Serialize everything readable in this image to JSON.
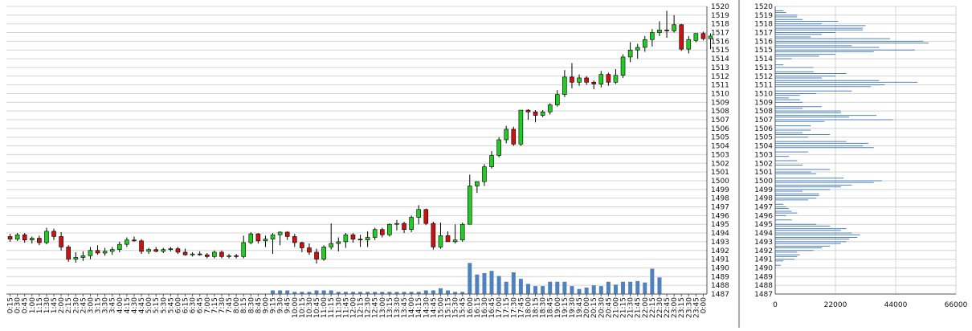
{
  "chart_data": [
    {
      "type": "candlestick",
      "title": "",
      "xlabel": "",
      "ylabel": "",
      "ylim": [
        1487,
        1520
      ],
      "y_ticks": [
        1487,
        1488,
        1489,
        1490,
        1491,
        1492,
        1493,
        1494,
        1495,
        1496,
        1497,
        1498,
        1499,
        1500,
        1501,
        1502,
        1503,
        1504,
        1505,
        1506,
        1507,
        1508,
        1509,
        1510,
        1511,
        1512,
        1513,
        1514,
        1515,
        1516,
        1517,
        1518,
        1519,
        1520
      ],
      "x_tick_labels": [
        "0:15",
        "0:30",
        "0:45",
        "1:00",
        "1:15",
        "1:30",
        "1:45",
        "2:00",
        "2:15",
        "2:30",
        "2:45",
        "3:00",
        "3:15",
        "3:30",
        "3:45",
        "4:00",
        "4:15",
        "4:30",
        "4:45",
        "5:00",
        "5:15",
        "5:30",
        "5:45",
        "6:00",
        "6:15",
        "6:30",
        "6:45",
        "7:00",
        "7:15",
        "7:30",
        "7:45",
        "8:00",
        "8:15",
        "8:30",
        "8:45",
        "9:00",
        "9:15",
        "9:30",
        "9:45",
        "10:00",
        "10:15",
        "10:30",
        "10:45",
        "11:00",
        "11:15",
        "11:30",
        "11:45",
        "12:00",
        "12:15",
        "12:30",
        "12:45",
        "13:00",
        "13:15",
        "13:30",
        "13:45",
        "14:00",
        "14:15",
        "14:30",
        "14:45",
        "15:00",
        "15:15",
        "15:30",
        "15:45",
        "16:00",
        "16:15",
        "16:30",
        "16:45",
        "17:00",
        "17:15",
        "17:30",
        "17:45",
        "18:00",
        "18:15",
        "18:30",
        "18:45",
        "19:00",
        "19:15",
        "19:30",
        "19:45",
        "20:00",
        "20:15",
        "20:30",
        "20:45",
        "21:00",
        "21:15",
        "21:30",
        "21:45",
        "22:00",
        "22:15",
        "22:30",
        "22:45",
        "23:00",
        "23:15",
        "23:30",
        "23:45",
        "0:00"
      ],
      "candles": [
        [
          1493.6,
          1493.9,
          1493.0,
          1493.3
        ],
        [
          1493.3,
          1494.0,
          1493.1,
          1493.8
        ],
        [
          1493.8,
          1494.0,
          1492.9,
          1493.2
        ],
        [
          1493.2,
          1493.6,
          1492.8,
          1493.4
        ],
        [
          1493.4,
          1493.7,
          1492.6,
          1492.9
        ],
        [
          1492.9,
          1494.6,
          1492.7,
          1494.2
        ],
        [
          1494.2,
          1494.5,
          1493.2,
          1493.6
        ],
        [
          1493.6,
          1494.1,
          1492.0,
          1492.4
        ],
        [
          1492.4,
          1492.6,
          1490.7,
          1491.0
        ],
        [
          1491.0,
          1491.8,
          1490.6,
          1491.2
        ],
        [
          1491.2,
          1491.9,
          1490.8,
          1491.4
        ],
        [
          1491.4,
          1492.4,
          1491.0,
          1492.0
        ],
        [
          1492.0,
          1492.6,
          1491.5,
          1491.7
        ],
        [
          1491.7,
          1492.3,
          1491.4,
          1491.9
        ],
        [
          1491.9,
          1492.4,
          1491.5,
          1492.1
        ],
        [
          1492.1,
          1493.0,
          1491.8,
          1492.7
        ],
        [
          1492.7,
          1493.5,
          1492.4,
          1493.2
        ],
        [
          1493.2,
          1493.6,
          1493.0,
          1493.1
        ],
        [
          1493.1,
          1493.3,
          1491.6,
          1491.9
        ],
        [
          1491.9,
          1492.3,
          1491.6,
          1492.1
        ],
        [
          1492.1,
          1492.4,
          1491.8,
          1491.9
        ],
        [
          1491.9,
          1492.3,
          1491.7,
          1492.1
        ],
        [
          1492.1,
          1492.4,
          1491.9,
          1492.2
        ],
        [
          1492.2,
          1492.4,
          1491.6,
          1491.8
        ],
        [
          1491.8,
          1492.2,
          1491.4,
          1491.5
        ],
        [
          1491.5,
          1491.8,
          1491.3,
          1491.6
        ],
        [
          1491.6,
          1491.9,
          1491.4,
          1491.5
        ],
        [
          1491.5,
          1491.7,
          1491.1,
          1491.3
        ],
        [
          1491.3,
          1492.0,
          1491.1,
          1491.8
        ],
        [
          1491.8,
          1492.0,
          1491.1,
          1491.3
        ],
        [
          1491.3,
          1491.6,
          1491.1,
          1491.4
        ],
        [
          1491.4,
          1491.6,
          1491.1,
          1491.3
        ],
        [
          1491.3,
          1493.7,
          1491.1,
          1492.9
        ],
        [
          1492.9,
          1494.1,
          1492.7,
          1493.9
        ],
        [
          1493.9,
          1494.0,
          1492.8,
          1493.1
        ],
        [
          1493.1,
          1493.7,
          1492.4,
          1493.3
        ],
        [
          1493.3,
          1494.0,
          1491.6,
          1493.8
        ],
        [
          1493.8,
          1494.2,
          1492.6,
          1494.1
        ],
        [
          1494.1,
          1494.2,
          1493.2,
          1493.6
        ],
        [
          1493.6,
          1493.9,
          1492.4,
          1492.9
        ],
        [
          1492.9,
          1493.0,
          1491.8,
          1492.3
        ],
        [
          1492.3,
          1492.8,
          1491.5,
          1491.8
        ],
        [
          1491.8,
          1492.2,
          1490.5,
          1491.0
        ],
        [
          1491.0,
          1492.6,
          1490.8,
          1492.4
        ],
        [
          1492.4,
          1495.1,
          1492.1,
          1492.8
        ],
        [
          1492.8,
          1493.5,
          1491.9,
          1493.0
        ],
        [
          1493.0,
          1494.0,
          1492.3,
          1493.8
        ],
        [
          1493.8,
          1494.0,
          1492.9,
          1493.3
        ],
        [
          1493.3,
          1493.8,
          1492.4,
          1493.2
        ],
        [
          1493.2,
          1494.2,
          1492.4,
          1493.5
        ],
        [
          1493.5,
          1494.6,
          1493.2,
          1494.4
        ],
        [
          1494.4,
          1494.6,
          1493.5,
          1493.8
        ],
        [
          1493.8,
          1495.1,
          1493.6,
          1495.0
        ],
        [
          1495.0,
          1495.5,
          1494.3,
          1495.1
        ],
        [
          1495.1,
          1495.3,
          1494.0,
          1494.4
        ],
        [
          1494.4,
          1496.0,
          1494.1,
          1495.8
        ],
        [
          1495.8,
          1497.2,
          1495.0,
          1496.7
        ],
        [
          1496.7,
          1496.8,
          1494.9,
          1495.1
        ],
        [
          1495.1,
          1495.3,
          1492.1,
          1492.4
        ],
        [
          1492.4,
          1495.2,
          1492.2,
          1493.7
        ],
        [
          1493.7,
          1494.2,
          1493.1,
          1493.0
        ],
        [
          1493.0,
          1495.0,
          1492.8,
          1493.2
        ],
        [
          1493.2,
          1495.2,
          1493.0,
          1495.0
        ],
        [
          1495.0,
          1500.7,
          1495.0,
          1499.4
        ],
        [
          1499.4,
          1499.9,
          1498.6,
          1499.9
        ],
        [
          1499.9,
          1501.9,
          1499.4,
          1501.6
        ],
        [
          1501.6,
          1503.4,
          1501.4,
          1502.9
        ],
        [
          1502.9,
          1505.0,
          1502.7,
          1504.7
        ],
        [
          1504.7,
          1506.3,
          1504.3,
          1505.9
        ],
        [
          1505.9,
          1506.2,
          1504.0,
          1504.2
        ],
        [
          1504.2,
          1508.0,
          1504.0,
          1508.1
        ],
        [
          1508.1,
          1508.2,
          1507.0,
          1507.9
        ],
        [
          1507.9,
          1508.1,
          1506.7,
          1507.5
        ],
        [
          1507.5,
          1508.1,
          1507.3,
          1507.9
        ],
        [
          1507.9,
          1508.9,
          1507.6,
          1508.7
        ],
        [
          1508.7,
          1510.4,
          1508.5,
          1509.9
        ],
        [
          1509.9,
          1512.7,
          1509.6,
          1511.9
        ],
        [
          1511.9,
          1513.5,
          1510.6,
          1511.3
        ],
        [
          1511.3,
          1512.2,
          1510.9,
          1511.8
        ],
        [
          1511.8,
          1512.0,
          1511.0,
          1511.3
        ],
        [
          1511.3,
          1511.5,
          1510.5,
          1511.1
        ],
        [
          1511.1,
          1512.6,
          1510.7,
          1512.2
        ],
        [
          1512.2,
          1512.4,
          1510.9,
          1511.3
        ],
        [
          1511.3,
          1512.8,
          1511.1,
          1512.1
        ],
        [
          1512.1,
          1514.5,
          1511.8,
          1514.2
        ],
        [
          1514.2,
          1515.9,
          1513.6,
          1515.0
        ],
        [
          1515.0,
          1515.7,
          1514.0,
          1515.3
        ],
        [
          1515.3,
          1516.6,
          1514.8,
          1516.2
        ],
        [
          1516.2,
          1517.4,
          1515.4,
          1517.0
        ],
        [
          1517.0,
          1518.3,
          1516.6,
          1517.3
        ],
        [
          1517.3,
          1519.5,
          1516.4,
          1517.2
        ],
        [
          1517.2,
          1519.0,
          1517.0,
          1517.9
        ],
        [
          1517.9,
          1518.0,
          1514.9,
          1515.1
        ],
        [
          1515.1,
          1516.6,
          1514.6,
          1516.2
        ],
        [
          1516.1,
          1516.9,
          1515.9,
          1516.9
        ],
        [
          1516.9,
          1517.1,
          1516.1,
          1516.3
        ],
        [
          1516.3,
          1516.9,
          1515.1,
          1516.6
        ]
      ],
      "volume": [
        0,
        0,
        0,
        0,
        0,
        0,
        0,
        0,
        0,
        0,
        0,
        0,
        0,
        0,
        0,
        0,
        0,
        0,
        0,
        0,
        0,
        0,
        0,
        0,
        0,
        0,
        0,
        0,
        0,
        0,
        0,
        0,
        0,
        0,
        0,
        0,
        0.5,
        0.5,
        0.5,
        0.3,
        0.3,
        0.3,
        0.5,
        0.5,
        0.5,
        0.3,
        0.3,
        0.3,
        0.3,
        0.3,
        0.3,
        0.3,
        0.3,
        0.3,
        0.3,
        0.3,
        0.3,
        0.5,
        0.5,
        0.8,
        0.5,
        0.3,
        0.3,
        4.3,
        2.7,
        2.9,
        3.2,
        2.5,
        1.7,
        3.0,
        2.1,
        1.4,
        1.1,
        1.1,
        1.7,
        1.7,
        1.7,
        1.1,
        0.7,
        0.9,
        1.2,
        1.1,
        1.7,
        1.3,
        1.7,
        1.7,
        1.8,
        1.6,
        3.5,
        2.3,
        0,
        0,
        0,
        0,
        0,
        0
      ]
    },
    {
      "type": "bar",
      "orientation": "horizontal",
      "title": "",
      "xlabel": "",
      "ylabel": "",
      "xlim": [
        0,
        66000
      ],
      "x_ticks": [
        0,
        22000,
        44000,
        66000
      ],
      "y_ticks": [
        1487,
        1488,
        1489,
        1490,
        1491,
        1492,
        1493,
        1494,
        1495,
        1496,
        1497,
        1498,
        1499,
        1500,
        1501,
        1502,
        1503,
        1504,
        1505,
        1506,
        1507,
        1508,
        1509,
        1510,
        1511,
        1512,
        1513,
        1514,
        1515,
        1516,
        1517,
        1518,
        1519,
        1520
      ],
      "levels": [
        1490.3,
        1490.8,
        1491.0,
        1491.3,
        1491.5,
        1491.8,
        1492.0,
        1492.3,
        1492.5,
        1492.8,
        1493.0,
        1493.3,
        1493.5,
        1493.8,
        1494.0,
        1494.3,
        1494.5,
        1494.8,
        1495.0,
        1495.5,
        1496.0,
        1496.3,
        1496.5,
        1496.8,
        1497.0,
        1497.3,
        1497.8,
        1498.0,
        1498.3,
        1498.5,
        1498.8,
        1499.0,
        1499.3,
        1499.5,
        1499.8,
        1500.0,
        1500.3,
        1500.8,
        1501.0,
        1501.3,
        1501.8,
        1502.3,
        1502.8,
        1503.3,
        1503.8,
        1504.0,
        1504.3,
        1504.5,
        1505.0,
        1505.3,
        1505.5,
        1505.8,
        1506.3,
        1506.8,
        1507.0,
        1507.3,
        1507.5,
        1507.8,
        1508.0,
        1508.3,
        1508.5,
        1509.0,
        1509.3,
        1509.5,
        1509.8,
        1510.0,
        1510.3,
        1510.8,
        1511.0,
        1511.3,
        1511.5,
        1511.8,
        1512.0,
        1512.3,
        1512.5,
        1513.0,
        1513.3,
        1514.0,
        1514.3,
        1514.5,
        1514.8,
        1515.0,
        1515.3,
        1515.5,
        1515.8,
        1516.0,
        1516.3,
        1516.5,
        1516.8,
        1517.0,
        1517.3,
        1517.5,
        1517.8,
        1518.0,
        1518.3,
        1518.5,
        1518.8,
        1519.0,
        1519.3,
        1519.5
      ],
      "values": [
        2000,
        3000,
        7000,
        8000,
        9000,
        8000,
        14000,
        17000,
        20000,
        24000,
        26000,
        27000,
        30000,
        31000,
        28000,
        24000,
        26000,
        20000,
        15000,
        6000,
        4000,
        8000,
        6000,
        5000,
        4000,
        3000,
        12000,
        15000,
        16000,
        16000,
        10000,
        20000,
        24000,
        28000,
        36000,
        39000,
        25000,
        15000,
        13000,
        20000,
        10000,
        8000,
        5000,
        12000,
        36000,
        32000,
        34000,
        26000,
        12000,
        20000,
        10000,
        13000,
        13000,
        18000,
        43000,
        27000,
        37000,
        24000,
        24000,
        10000,
        17000,
        10000,
        9000,
        5000,
        9000,
        15000,
        28000,
        35000,
        40000,
        52000,
        38000,
        17000,
        22000,
        26000,
        14000,
        14000,
        3000,
        6000,
        16000,
        22000,
        36000,
        51000,
        38000,
        28000,
        56000,
        54000,
        42000,
        13000,
        17000,
        22000,
        32000,
        32000,
        33000,
        17000,
        23000,
        10000,
        8000,
        8000,
        4000,
        3000
      ]
    }
  ]
}
